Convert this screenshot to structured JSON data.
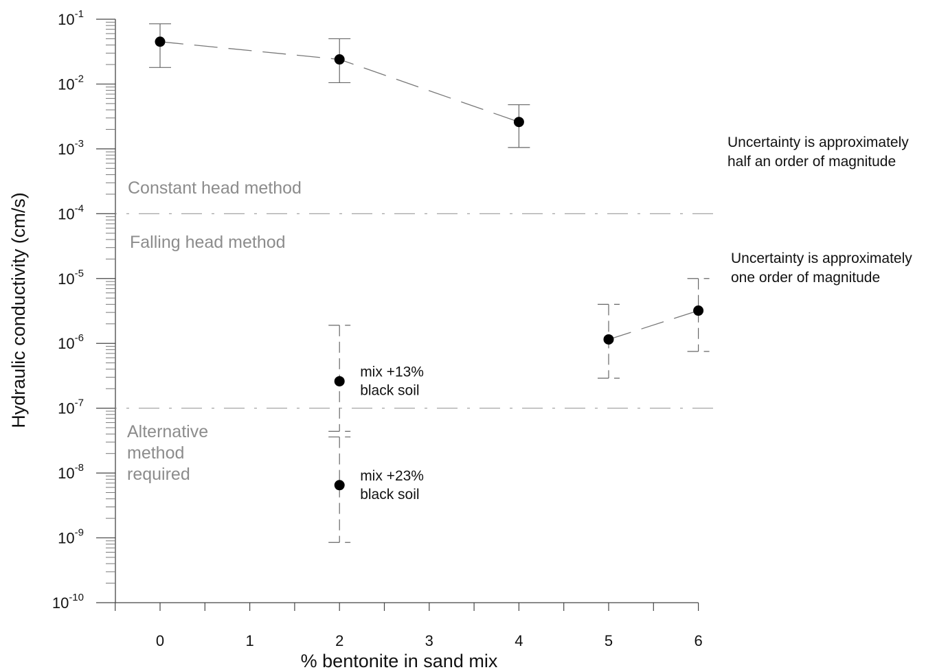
{
  "chart_data": {
    "type": "scatter",
    "xlabel": "% bentonite in sand mix",
    "ylabel": "Hydraulic conductivity (cm/s)",
    "y_scale": "log",
    "xlim": [
      -0.5,
      6
    ],
    "ylim": [
      1e-10,
      0.1
    ],
    "x_ticks": [
      {
        "value": 0,
        "label": "0"
      },
      {
        "value": 1,
        "label": "1"
      },
      {
        "value": 2,
        "label": "2"
      },
      {
        "value": 3,
        "label": "3"
      },
      {
        "value": 4,
        "label": "4"
      },
      {
        "value": 5,
        "label": "5"
      },
      {
        "value": 6,
        "label": "6"
      }
    ],
    "y_ticks": [
      {
        "value": 0.1,
        "base": "10",
        "exp": "-1"
      },
      {
        "value": 0.01,
        "base": "10",
        "exp": "-2"
      },
      {
        "value": 0.001,
        "base": "10",
        "exp": "-3"
      },
      {
        "value": 0.0001,
        "base": "10",
        "exp": "-4"
      },
      {
        "value": 1e-05,
        "base": "10",
        "exp": "-5"
      },
      {
        "value": 1e-06,
        "base": "10",
        "exp": "-6"
      },
      {
        "value": 1e-07,
        "base": "10",
        "exp": "-7"
      },
      {
        "value": 1e-08,
        "base": "10",
        "exp": "-8"
      },
      {
        "value": 1e-09,
        "base": "10",
        "exp": "-9"
      },
      {
        "value": 1e-10,
        "base": "10",
        "exp": "-10"
      }
    ],
    "series": [
      {
        "line": "dashed",
        "error_style": "solid",
        "points": [
          {
            "x": 0,
            "y": 0.045,
            "err_low": 0.018,
            "err_high": 0.085
          },
          {
            "x": 2,
            "y": 0.024,
            "err_low": 0.0105,
            "err_high": 0.05
          },
          {
            "x": 4,
            "y": 0.0026,
            "err_low": 0.00105,
            "err_high": 0.0048
          }
        ]
      },
      {
        "line": "dashed",
        "error_style": "dashed",
        "points": [
          {
            "x": 5,
            "y": 1.15e-06,
            "err_low": 2.9e-07,
            "err_high": 4e-06
          },
          {
            "x": 6,
            "y": 3.2e-06,
            "err_low": 7.5e-07,
            "err_high": 1e-05
          }
        ]
      },
      {
        "line": "none",
        "error_style": "dashed",
        "points": [
          {
            "x": 2,
            "y": 2.6e-07,
            "err_low": 4.4e-08,
            "err_high": 1.9e-06,
            "label": [
              "mix +13%",
              "black soil"
            ]
          },
          {
            "x": 2,
            "y": 6.5e-09,
            "err_low": 8.5e-10,
            "err_high": 3.6e-08,
            "label": [
              "mix +23%",
              "black soil"
            ]
          }
        ]
      }
    ],
    "reference_lines": [
      {
        "y": 0.0001,
        "style": "dash-dot"
      },
      {
        "y": 1e-07,
        "style": "dash-dot"
      }
    ],
    "region_labels": [
      {
        "lines": [
          "Constant head method"
        ]
      },
      {
        "lines": [
          "Falling head method"
        ]
      },
      {
        "lines": [
          "Alternative",
          "method",
          "required"
        ]
      }
    ],
    "annotations": [
      {
        "lines": [
          "Uncertainty is approximately",
          "half an order of magnitude"
        ]
      },
      {
        "lines": [
          "Uncertainty is approximately",
          "one order of magnitude"
        ]
      }
    ]
  }
}
